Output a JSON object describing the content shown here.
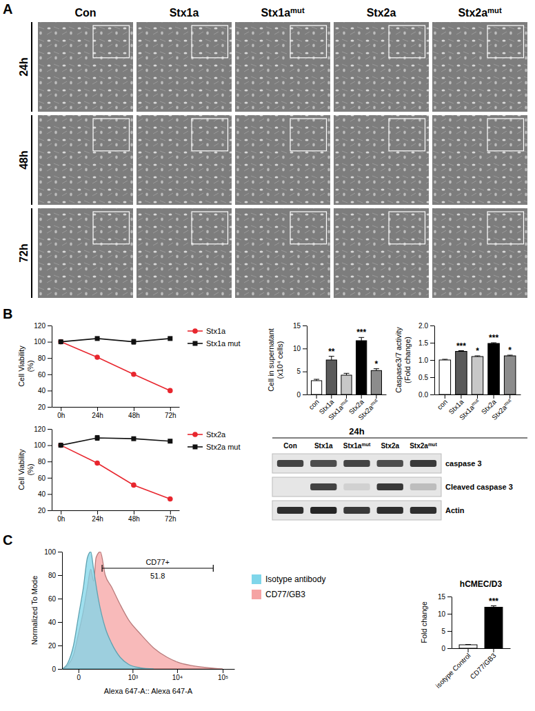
{
  "panel_labels": [
    "A",
    "B",
    "C"
  ],
  "micrographs": {
    "columns": [
      "Con",
      "Stx1a",
      "Stx1amut",
      "Stx2a",
      "Stx2amut"
    ],
    "rows": [
      "24h",
      "48h",
      "72h"
    ]
  },
  "chart_data": [
    {
      "type": "line",
      "ylabel": "Cell Viability (%)",
      "categories": [
        "0h",
        "24h",
        "48h",
        "72h"
      ],
      "ylim": [
        20,
        120
      ],
      "yticks": [
        20,
        40,
        60,
        80,
        100,
        120
      ],
      "legend": "right",
      "series": [
        {
          "name": "Stx1a",
          "color": "#e8262e",
          "marker": "circle",
          "values": [
            100,
            81,
            60,
            40
          ],
          "errors": [
            1,
            1,
            1,
            1
          ]
        },
        {
          "name": "Stx1a mut",
          "color": "#111111",
          "marker": "square",
          "values": [
            100,
            104,
            100,
            104
          ],
          "errors": [
            2,
            1,
            3,
            1
          ]
        }
      ]
    },
    {
      "type": "line",
      "ylabel": "Cell Viability (%)",
      "categories": [
        "0h",
        "24h",
        "48h",
        "72h"
      ],
      "ylim": [
        20,
        120
      ],
      "yticks": [
        20,
        40,
        60,
        80,
        100,
        120
      ],
      "legend": "right",
      "series": [
        {
          "name": "Stx2a",
          "color": "#e8262e",
          "marker": "circle",
          "values": [
            100,
            78,
            51,
            34
          ],
          "errors": [
            1,
            1,
            1,
            1
          ]
        },
        {
          "name": "Stx2a mut",
          "color": "#111111",
          "marker": "square",
          "values": [
            100,
            109,
            108,
            105
          ],
          "errors": [
            1,
            3,
            1,
            1
          ]
        }
      ]
    },
    {
      "type": "bar",
      "ylabel": "Cell in supernatant (x10⁴ cells)",
      "categories": [
        "con",
        "Stx1a",
        "Stx1amut",
        "Stx2a",
        "Stx2amut"
      ],
      "values": [
        3,
        7.5,
        4.2,
        11.7,
        5.2
      ],
      "errors": [
        0.3,
        0.8,
        0.4,
        0.7,
        0.4
      ],
      "annotations": [
        null,
        "**",
        null,
        "***",
        "*"
      ],
      "colors": [
        "#ffffff",
        "#5a5a5a",
        "#c8c8c8",
        "#000000",
        "#8c8c8c"
      ],
      "ylim": [
        0,
        15
      ],
      "yticks": [
        0,
        5,
        10,
        15
      ]
    },
    {
      "type": "bar",
      "ylabel": "Caspase3/7 activity (Fold change)",
      "categories": [
        "con",
        "Stx1a",
        "Stx1amut",
        "Stx2a",
        "Stx2amut"
      ],
      "values": [
        1.0,
        1.25,
        1.1,
        1.48,
        1.12
      ],
      "errors": [
        0.02,
        0.02,
        0.02,
        0.02,
        0.02
      ],
      "annotations": [
        null,
        "***",
        "*",
        "***",
        "*"
      ],
      "colors": [
        "#ffffff",
        "#5a5a5a",
        "#c8c8c8",
        "#000000",
        "#8c8c8c"
      ],
      "ylim": [
        0,
        2
      ],
      "yticks": [
        {
          "value": 0,
          "label": "0.0"
        },
        0.5,
        {
          "value": 1,
          "label": "1.0"
        },
        1.5,
        {
          "value": 2,
          "label": "2.0"
        }
      ]
    },
    {
      "type": "area",
      "xlabel": "Alexa 647-A:: Alexa 647-A",
      "ylabel": "Normalized To Mode",
      "log": "x",
      "xlim": [
        -90,
        180000
      ],
      "xticks": [
        0,
        {
          "value": 1000,
          "label": "10³"
        },
        {
          "value": 10000,
          "label": "10⁴"
        },
        {
          "value": 100000,
          "label": "10⁵"
        }
      ],
      "ylim": [
        0,
        100
      ],
      "yticks": [
        0,
        20,
        40,
        60,
        80,
        100
      ],
      "legend": "right",
      "gate": {
        "label": "CD77+",
        "value": 51.8,
        "range": [
          160,
          62000
        ]
      },
      "series": [
        {
          "name": "Isotype antibody",
          "color": "#7fd6ea",
          "x": [
            -90,
            -50,
            -20,
            0,
            20,
            40,
            60,
            80,
            120,
            200,
            300,
            500,
            800,
            1500,
            3000
          ],
          "values": [
            0,
            5,
            20,
            45,
            70,
            95,
            100,
            85,
            60,
            35,
            22,
            10,
            4,
            1,
            0
          ]
        },
        {
          "name": "CD77/GB3",
          "color": "#f5a3a3",
          "x": [
            -90,
            -50,
            -20,
            0,
            20,
            40,
            60,
            80,
            100,
            140,
            200,
            300,
            500,
            800,
            1500,
            3000,
            6000,
            10000,
            20000,
            50000,
            100000
          ],
          "values": [
            0,
            3,
            12,
            30,
            50,
            70,
            85,
            75,
            95,
            100,
            80,
            70,
            55,
            42,
            30,
            18,
            10,
            6,
            3,
            1,
            0
          ]
        }
      ]
    },
    {
      "type": "bar",
      "title": "hCMEC/D3",
      "ylabel": "Fold change",
      "categories": [
        "isotype Control",
        "CD77/GB3"
      ],
      "values": [
        1,
        11.9
      ],
      "errors": [
        0.1,
        0.4
      ],
      "annotations": [
        null,
        "***"
      ],
      "colors": [
        "#ffffff",
        "#000000"
      ],
      "ylim": [
        0,
        15
      ],
      "yticks": [
        0,
        5,
        10,
        15
      ]
    }
  ],
  "western_blot": {
    "title": "24h",
    "lanes": [
      "Con",
      "Stx1a",
      "Stx1amut",
      "Stx2a",
      "Stx2amut"
    ],
    "bands": [
      {
        "name": "caspase 3",
        "intensity": [
          0.8,
          0.75,
          0.8,
          0.75,
          0.85
        ]
      },
      {
        "name": "Cleaved caspase 3",
        "intensity": [
          0,
          0.8,
          0.1,
          0.85,
          0.2
        ]
      },
      {
        "name": "Actin",
        "intensity": [
          0.9,
          0.95,
          0.85,
          0.9,
          0.9
        ]
      }
    ]
  }
}
